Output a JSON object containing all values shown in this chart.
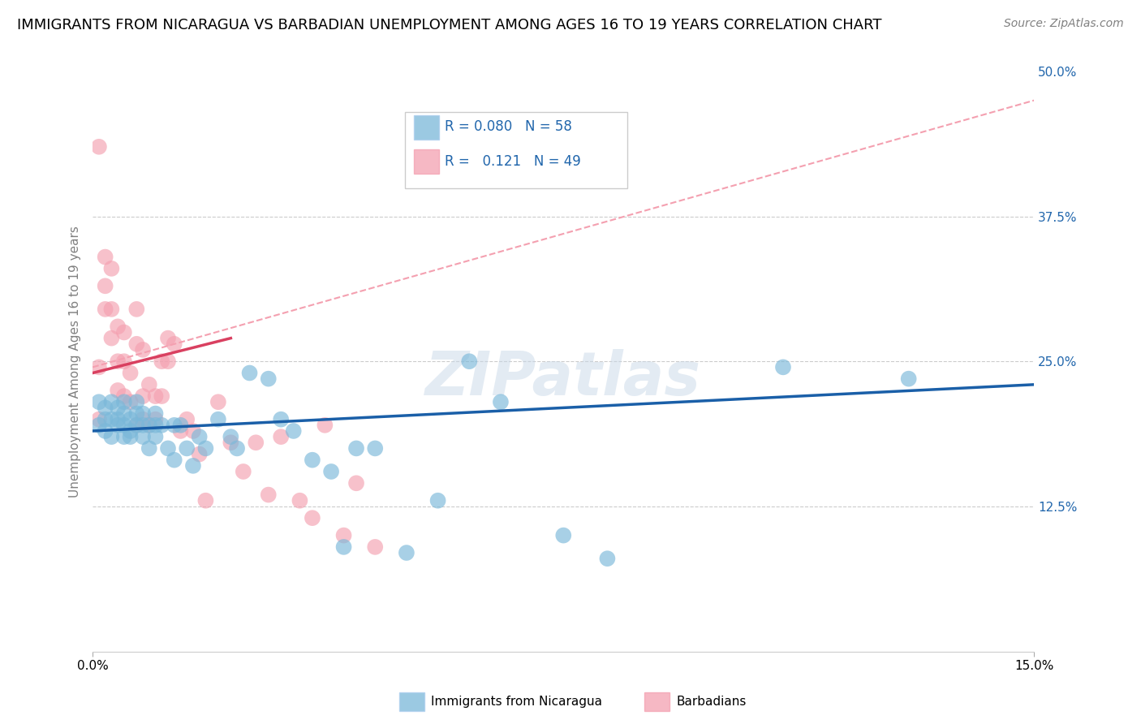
{
  "title": "IMMIGRANTS FROM NICARAGUA VS BARBADIAN UNEMPLOYMENT AMONG AGES 16 TO 19 YEARS CORRELATION CHART",
  "source": "Source: ZipAtlas.com",
  "xlabel_bottom": "Immigrants from Nicaragua",
  "ylabel": "Unemployment Among Ages 16 to 19 years",
  "xlim": [
    0.0,
    0.15
  ],
  "ylim": [
    0.0,
    0.5
  ],
  "x_ticks": [
    0.0,
    0.15
  ],
  "x_tick_labels": [
    "0.0%",
    "15.0%"
  ],
  "y_ticks": [
    0.0,
    0.125,
    0.25,
    0.375,
    0.5
  ],
  "y_tick_labels": [
    "",
    "12.5%",
    "25.0%",
    "37.5%",
    "50.0%"
  ],
  "blue_color": "#7ab8d9",
  "pink_color": "#f4a0b0",
  "blue_line_color": "#1a5fa8",
  "pink_line_color": "#d94060",
  "legend_r_blue": "0.080",
  "legend_n_blue": "58",
  "legend_r_pink": "0.121",
  "legend_n_pink": "49",
  "watermark": "ZIPatlas",
  "title_fontsize": 13,
  "source_fontsize": 10,
  "blue_line_x0": 0.0,
  "blue_line_y0": 0.19,
  "blue_line_x1": 0.15,
  "blue_line_y1": 0.23,
  "pink_line_x0": 0.0,
  "pink_line_y0": 0.24,
  "pink_line_x1": 0.022,
  "pink_line_y1": 0.27,
  "dashed_line_x0": 0.0,
  "dashed_line_y0": 0.245,
  "dashed_line_x1": 0.15,
  "dashed_line_y1": 0.475,
  "blue_scatter_x": [
    0.001,
    0.001,
    0.002,
    0.002,
    0.002,
    0.003,
    0.003,
    0.003,
    0.004,
    0.004,
    0.004,
    0.005,
    0.005,
    0.005,
    0.005,
    0.006,
    0.006,
    0.006,
    0.007,
    0.007,
    0.007,
    0.008,
    0.008,
    0.008,
    0.009,
    0.009,
    0.01,
    0.01,
    0.01,
    0.011,
    0.012,
    0.013,
    0.013,
    0.014,
    0.015,
    0.016,
    0.017,
    0.018,
    0.02,
    0.022,
    0.023,
    0.025,
    0.028,
    0.03,
    0.032,
    0.035,
    0.038,
    0.04,
    0.042,
    0.045,
    0.05,
    0.055,
    0.06,
    0.065,
    0.075,
    0.082,
    0.11,
    0.13
  ],
  "blue_scatter_y": [
    0.195,
    0.215,
    0.2,
    0.19,
    0.21,
    0.2,
    0.215,
    0.185,
    0.195,
    0.21,
    0.2,
    0.195,
    0.185,
    0.205,
    0.215,
    0.19,
    0.2,
    0.185,
    0.195,
    0.205,
    0.215,
    0.185,
    0.195,
    0.205,
    0.175,
    0.195,
    0.195,
    0.185,
    0.205,
    0.195,
    0.175,
    0.195,
    0.165,
    0.195,
    0.175,
    0.16,
    0.185,
    0.175,
    0.2,
    0.185,
    0.175,
    0.24,
    0.235,
    0.2,
    0.19,
    0.165,
    0.155,
    0.09,
    0.175,
    0.175,
    0.085,
    0.13,
    0.25,
    0.215,
    0.1,
    0.08,
    0.245,
    0.235
  ],
  "pink_scatter_x": [
    0.001,
    0.001,
    0.001,
    0.002,
    0.002,
    0.002,
    0.003,
    0.003,
    0.003,
    0.004,
    0.004,
    0.004,
    0.005,
    0.005,
    0.005,
    0.006,
    0.006,
    0.007,
    0.007,
    0.007,
    0.008,
    0.008,
    0.008,
    0.009,
    0.009,
    0.01,
    0.01,
    0.011,
    0.011,
    0.012,
    0.012,
    0.013,
    0.014,
    0.015,
    0.016,
    0.017,
    0.018,
    0.02,
    0.022,
    0.024,
    0.026,
    0.028,
    0.03,
    0.033,
    0.035,
    0.037,
    0.04,
    0.042,
    0.045
  ],
  "pink_scatter_y": [
    0.435,
    0.2,
    0.245,
    0.315,
    0.295,
    0.34,
    0.33,
    0.295,
    0.27,
    0.28,
    0.25,
    0.225,
    0.275,
    0.25,
    0.22,
    0.24,
    0.215,
    0.295,
    0.265,
    0.195,
    0.22,
    0.2,
    0.26,
    0.23,
    0.195,
    0.22,
    0.2,
    0.25,
    0.22,
    0.27,
    0.25,
    0.265,
    0.19,
    0.2,
    0.19,
    0.17,
    0.13,
    0.215,
    0.18,
    0.155,
    0.18,
    0.135,
    0.185,
    0.13,
    0.115,
    0.195,
    0.1,
    0.145,
    0.09
  ]
}
